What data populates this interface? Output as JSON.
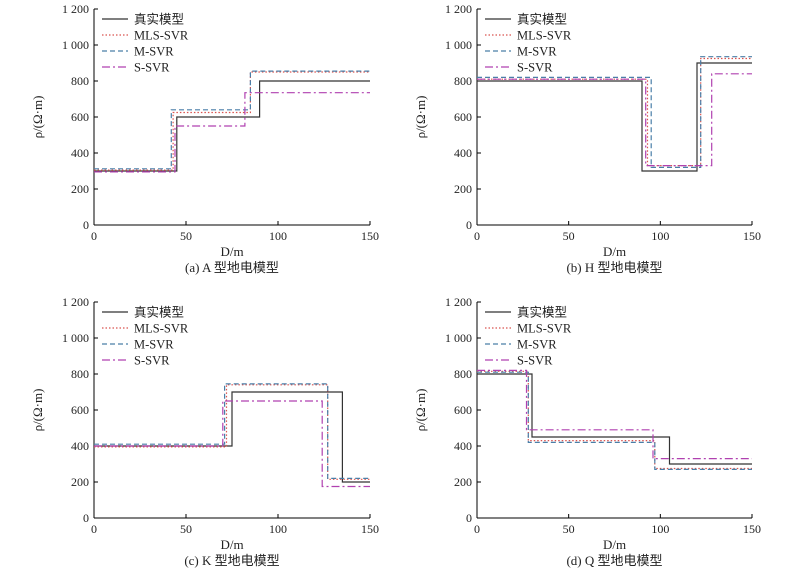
{
  "chart_data": [
    {
      "type": "line",
      "caption": "(a) A 型地电模型",
      "xlabel": "D/m",
      "ylabel": "ρ/(Ω·m)",
      "xlim": [
        0,
        150
      ],
      "ylim": [
        0,
        1200
      ],
      "xticks": [
        0,
        50,
        100,
        150
      ],
      "xtick_labels": [
        "0",
        "50",
        "100",
        "150"
      ],
      "yticks": [
        0,
        200,
        400,
        600,
        800,
        1000,
        1200
      ],
      "ytick_labels": [
        "0",
        "200",
        "400",
        "600",
        "800",
        "1 000",
        "1 200"
      ],
      "legend": "top-left",
      "series": [
        {
          "name": "真实模型",
          "x": [
            0,
            45,
            45,
            90,
            90,
            150
          ],
          "y": [
            300,
            300,
            600,
            600,
            800,
            800
          ]
        },
        {
          "name": "MLS-SVR",
          "x": [
            0,
            43,
            43,
            85,
            85,
            150
          ],
          "y": [
            305,
            305,
            625,
            625,
            850,
            850
          ]
        },
        {
          "name": "M-SVR",
          "x": [
            0,
            42,
            42,
            85,
            85,
            150
          ],
          "y": [
            312,
            312,
            640,
            640,
            855,
            855
          ]
        },
        {
          "name": "S-SVR",
          "x": [
            0,
            44,
            44,
            82,
            82,
            150
          ],
          "y": [
            295,
            295,
            550,
            550,
            735,
            735
          ]
        }
      ]
    },
    {
      "type": "line",
      "caption": "(b) H 型地电模型",
      "xlabel": "D/m",
      "ylabel": "ρ/(Ω·m)",
      "xlim": [
        0,
        150
      ],
      "ylim": [
        0,
        1200
      ],
      "xticks": [
        0,
        50,
        100,
        150
      ],
      "xtick_labels": [
        "0",
        "50",
        "100",
        "150"
      ],
      "yticks": [
        0,
        200,
        400,
        600,
        800,
        1000,
        1200
      ],
      "ytick_labels": [
        "0",
        "200",
        "400",
        "600",
        "800",
        "1 000",
        "1 200"
      ],
      "legend": "top-left",
      "series": [
        {
          "name": "真实模型",
          "x": [
            0,
            90,
            90,
            120,
            120,
            150
          ],
          "y": [
            800,
            800,
            300,
            300,
            900,
            900
          ]
        },
        {
          "name": "MLS-SVR",
          "x": [
            0,
            93,
            93,
            122,
            122,
            150
          ],
          "y": [
            810,
            810,
            330,
            330,
            925,
            925
          ]
        },
        {
          "name": "M-SVR",
          "x": [
            0,
            95,
            95,
            122,
            122,
            150
          ],
          "y": [
            820,
            820,
            320,
            320,
            935,
            935
          ]
        },
        {
          "name": "S-SVR",
          "x": [
            0,
            92,
            92,
            128,
            128,
            150
          ],
          "y": [
            810,
            810,
            330,
            330,
            840,
            840
          ]
        }
      ]
    },
    {
      "type": "line",
      "caption": "(c) K 型地电模型",
      "xlabel": "D/m",
      "ylabel": "ρ/(Ω·m)",
      "xlim": [
        0,
        150
      ],
      "ylim": [
        0,
        1200
      ],
      "xticks": [
        0,
        50,
        100,
        150
      ],
      "xtick_labels": [
        "0",
        "50",
        "100",
        "150"
      ],
      "yticks": [
        0,
        200,
        400,
        600,
        800,
        1000,
        1200
      ],
      "ytick_labels": [
        "0",
        "200",
        "400",
        "600",
        "800",
        "1 000",
        "1 200"
      ],
      "legend": "top-left",
      "series": [
        {
          "name": "真实模型",
          "x": [
            0,
            75,
            75,
            135,
            135,
            150
          ],
          "y": [
            400,
            400,
            700,
            700,
            200,
            200
          ]
        },
        {
          "name": "MLS-SVR",
          "x": [
            0,
            72,
            72,
            127,
            127,
            150
          ],
          "y": [
            395,
            395,
            740,
            740,
            215,
            215
          ]
        },
        {
          "name": "M-SVR",
          "x": [
            0,
            71,
            71,
            127,
            127,
            150
          ],
          "y": [
            410,
            410,
            745,
            745,
            220,
            220
          ]
        },
        {
          "name": "S-SVR",
          "x": [
            0,
            70,
            70,
            124,
            124,
            150
          ],
          "y": [
            400,
            400,
            650,
            650,
            175,
            175
          ]
        }
      ]
    },
    {
      "type": "line",
      "caption": "(d) Q 型地电模型",
      "xlabel": "D/m",
      "ylabel": "ρ/(Ω·m)",
      "xlim": [
        0,
        150
      ],
      "ylim": [
        0,
        1200
      ],
      "xticks": [
        0,
        50,
        100,
        150
      ],
      "xtick_labels": [
        "0",
        "50",
        "100",
        "150"
      ],
      "yticks": [
        0,
        200,
        400,
        600,
        800,
        1000,
        1200
      ],
      "ytick_labels": [
        "0",
        "200",
        "400",
        "600",
        "800",
        "1 000",
        "1 200"
      ],
      "legend": "top-left",
      "series": [
        {
          "name": "真实模型",
          "x": [
            0,
            30,
            30,
            105,
            105,
            150
          ],
          "y": [
            800,
            800,
            450,
            450,
            300,
            300
          ]
        },
        {
          "name": "MLS-SVR",
          "x": [
            0,
            28,
            28,
            97,
            97,
            150
          ],
          "y": [
            815,
            815,
            430,
            430,
            275,
            275
          ]
        },
        {
          "name": "M-SVR",
          "x": [
            0,
            28,
            28,
            97,
            97,
            150
          ],
          "y": [
            810,
            810,
            420,
            420,
            270,
            270
          ]
        },
        {
          "name": "S-SVR",
          "x": [
            0,
            27,
            27,
            96,
            96,
            150
          ],
          "y": [
            820,
            820,
            490,
            490,
            330,
            330
          ]
        }
      ]
    }
  ],
  "styles": {
    "真实模型": {
      "color": "#333333",
      "dash": ""
    },
    "MLS-SVR": {
      "color": "#d9534f",
      "dash": "1.5,2"
    },
    "M-SVR": {
      "color": "#4a7fa8",
      "dash": "5,3"
    },
    "S-SVR": {
      "color": "#b041b0",
      "dash": "8,3,2,3"
    }
  }
}
